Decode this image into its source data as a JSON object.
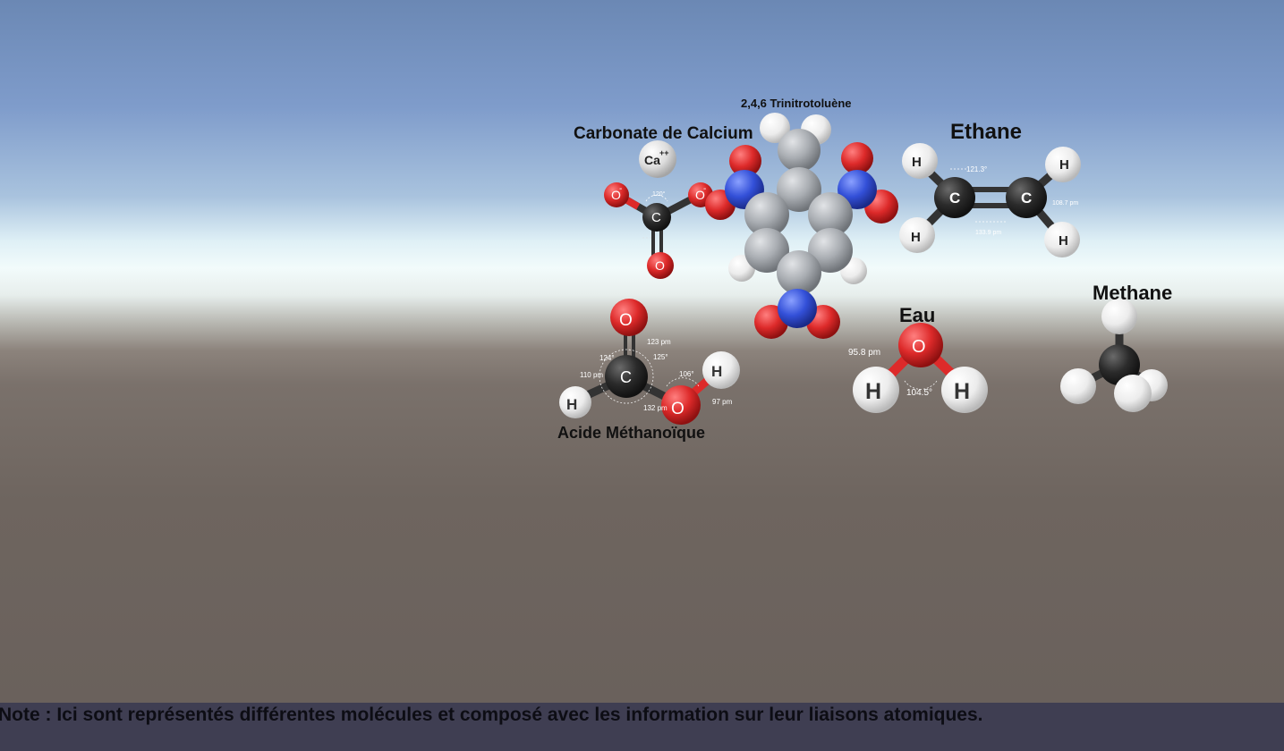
{
  "molecules": {
    "carbonate": {
      "label": "Carbonate de Calcium",
      "atoms": {
        "ca": "Ca",
        "ca_charge": "++",
        "c": "C",
        "o_left": "O",
        "o_right": "O",
        "o_bottom": "O",
        "minus": "-"
      },
      "angle": "120°"
    },
    "tnt": {
      "label": "2,4,6 Trinitrotoluène"
    },
    "ethane": {
      "label": "Ethane",
      "atoms": {
        "c1": "C",
        "c2": "C",
        "h1": "H",
        "h2": "H",
        "h3": "H",
        "h4": "H"
      },
      "angle": "121.3°",
      "bond_ch": "108.7 pm",
      "bond_cc": "133.9 pm"
    },
    "acid": {
      "label": "Acide Méthanoïque",
      "atoms": {
        "o_top": "O",
        "c": "C",
        "h_left": "H",
        "o_right": "O",
        "h_right": "H"
      },
      "d123": "123 pm",
      "a124": "124°",
      "a125": "125°",
      "d110": "110 pm",
      "a106": "106°",
      "d132": "132 pm",
      "d97": "97 pm"
    },
    "water": {
      "label": "Eau",
      "atoms": {
        "o": "O",
        "h1": "H",
        "h2": "H"
      },
      "bond": "95.8 pm",
      "angle": "104.5°"
    },
    "methane": {
      "label": "Methane"
    }
  },
  "note": "Note : Ici sont représentés différentes molécules et composé avec les information sur leur liaisons atomiques.",
  "colors": {
    "carbon": "#2b2b2b",
    "hydrogen": "#f2f2f2",
    "oxygen": "#dd2a2a",
    "nitrogen": "#3350d8",
    "tnt_carbon": "#a9adb2",
    "note_bar": "#3f3e52"
  }
}
